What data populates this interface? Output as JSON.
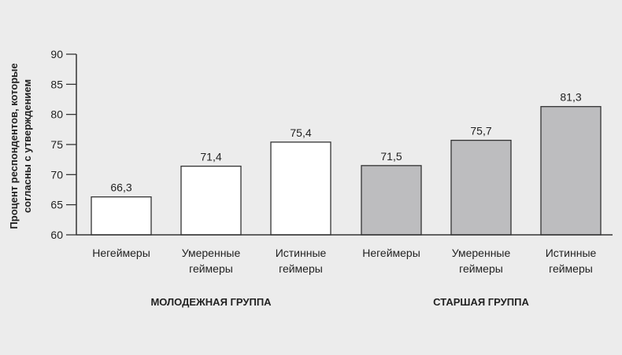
{
  "chart_data": {
    "type": "bar",
    "ylabel_lines": [
      "Процент респондентов, которые",
      "согласны с утверждением"
    ],
    "ylim": [
      60,
      90
    ],
    "yticks": [
      60,
      65,
      70,
      75,
      80,
      85,
      90
    ],
    "grid": false,
    "categories": [
      {
        "lines": [
          "Негеймеры"
        ]
      },
      {
        "lines": [
          "Умеренные",
          "геймеры"
        ]
      },
      {
        "lines": [
          "Истинные",
          "геймеры"
        ]
      },
      {
        "lines": [
          "Негеймеры"
        ]
      },
      {
        "lines": [
          "Умеренные",
          "геймеры"
        ]
      },
      {
        "lines": [
          "Истинные",
          "геймеры"
        ]
      }
    ],
    "values": [
      66.3,
      71.4,
      75.4,
      71.5,
      75.7,
      81.3
    ],
    "value_labels": [
      "66,3",
      "71,4",
      "75,4",
      "71,5",
      "75,7",
      "81,3"
    ],
    "groups": [
      {
        "label": "МОЛОДЕЖНАЯ ГРУППА",
        "bars": [
          0,
          1,
          2
        ],
        "fill": "#ffffff"
      },
      {
        "label": "СТАРШАЯ ГРУППА",
        "bars": [
          3,
          4,
          5
        ],
        "fill": "#bdbdbf"
      }
    ],
    "colors": {
      "axis": "#333333",
      "bar_outline": "#333333"
    }
  }
}
